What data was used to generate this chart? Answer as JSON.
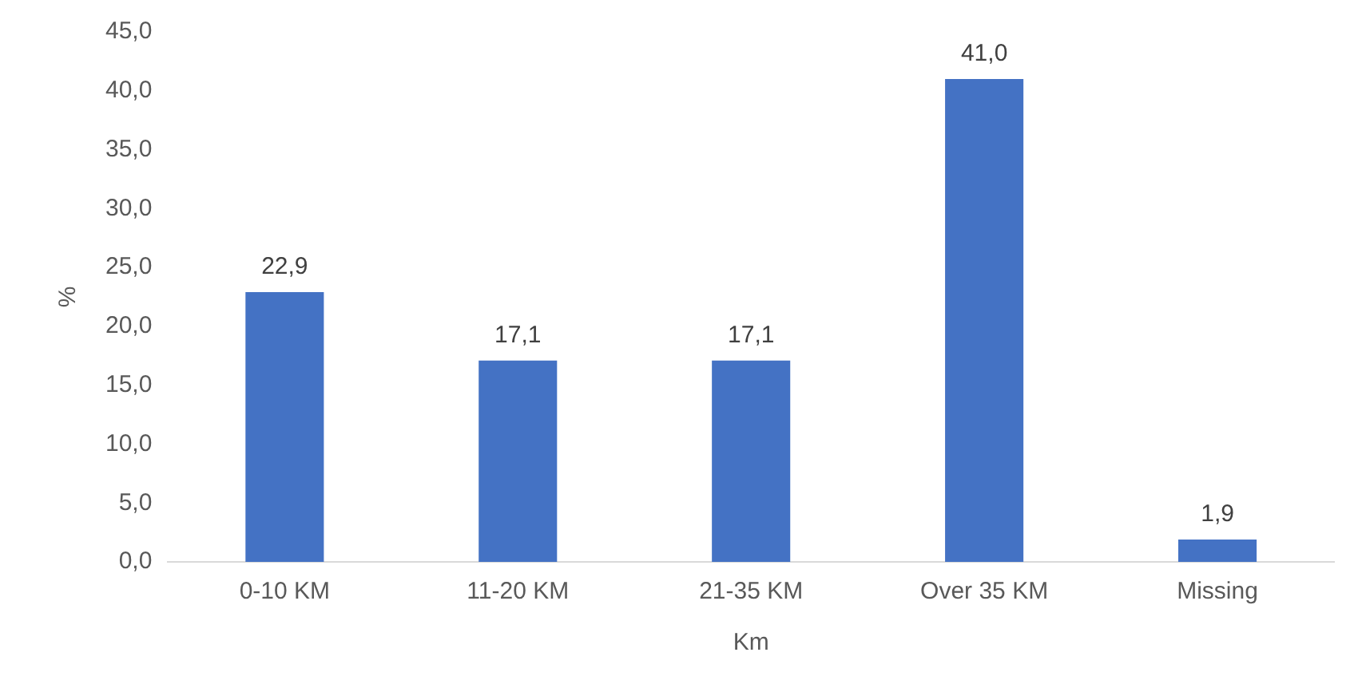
{
  "chart_data": {
    "type": "bar",
    "xlabel": "Km",
    "ylabel": "%",
    "categories": [
      "0-10 KM",
      "11-20 KM",
      "21-35 KM",
      "Over 35 KM",
      "Missing"
    ],
    "values": [
      22.9,
      17.1,
      17.1,
      41.0,
      1.9
    ],
    "value_labels": [
      "22,9",
      "17,1",
      "17,1",
      "41,0",
      "1,9"
    ],
    "color": "#4472c4",
    "ylim": [
      0,
      45
    ],
    "yticks": [
      {
        "value": 0,
        "label": "0,0"
      },
      {
        "value": 5,
        "label": "5,0"
      },
      {
        "value": 10,
        "label": "10,0"
      },
      {
        "value": 15,
        "label": "15,0"
      },
      {
        "value": 20,
        "label": "20,0"
      },
      {
        "value": 25,
        "label": "25,0"
      },
      {
        "value": 30,
        "label": "30,0"
      },
      {
        "value": 35,
        "label": "35,0"
      },
      {
        "value": 40,
        "label": "40,0"
      },
      {
        "value": 45,
        "label": "45,0"
      }
    ],
    "grid": false,
    "legend": false
  }
}
